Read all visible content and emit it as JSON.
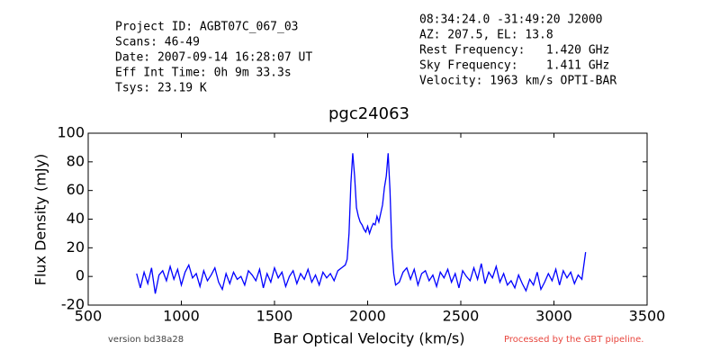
{
  "info_left": [
    "Project ID: AGBT07C_067_03",
    "Scans: 46-49",
    "Date: 2007-09-14 16:28:07 UT",
    "Eff Int Time: 0h 9m 33.3s",
    "Tsys: 23.19 K"
  ],
  "info_right": [
    "08:34:24.0 -31:49:20 J2000",
    "AZ: 207.5, EL: 13.8",
    "Rest Frequency:   1.420 GHz",
    "Sky Frequency:    1.411 GHz",
    "Velocity: 1963 km/s OPTI-BAR"
  ],
  "version": "version bd38a28",
  "pipeline_note": "Processed by the GBT pipeline.",
  "chart_data": {
    "type": "line",
    "title": "pgc24063",
    "x_label": "Bar Optical Velocity (km/s)",
    "y_label": "Flux Density (mJy)",
    "xlim": [
      500,
      3500
    ],
    "xticks": [
      500,
      1000,
      1500,
      2000,
      2500,
      3000,
      3500
    ],
    "ylim": [
      -20,
      100
    ],
    "yticks": [
      -20,
      0,
      20,
      40,
      60,
      80,
      100
    ],
    "x": [
      760,
      780,
      800,
      820,
      840,
      860,
      880,
      900,
      920,
      940,
      960,
      980,
      1000,
      1020,
      1040,
      1060,
      1080,
      1100,
      1120,
      1140,
      1160,
      1180,
      1200,
      1220,
      1240,
      1260,
      1280,
      1300,
      1320,
      1340,
      1360,
      1380,
      1400,
      1420,
      1440,
      1460,
      1480,
      1500,
      1520,
      1540,
      1560,
      1580,
      1600,
      1620,
      1640,
      1660,
      1680,
      1700,
      1720,
      1740,
      1760,
      1780,
      1800,
      1820,
      1840,
      1860,
      1880,
      1890,
      1900,
      1910,
      1920,
      1930,
      1940,
      1950,
      1960,
      1970,
      1980,
      1990,
      2000,
      2010,
      2020,
      2030,
      2040,
      2050,
      2060,
      2070,
      2080,
      2090,
      2100,
      2110,
      2120,
      2130,
      2140,
      2150,
      2170,
      2190,
      2210,
      2230,
      2250,
      2270,
      2290,
      2310,
      2330,
      2350,
      2370,
      2390,
      2410,
      2430,
      2450,
      2470,
      2490,
      2510,
      2530,
      2550,
      2570,
      2590,
      2610,
      2630,
      2650,
      2670,
      2690,
      2710,
      2730,
      2750,
      2770,
      2790,
      2810,
      2830,
      2850,
      2870,
      2890,
      2910,
      2930,
      2950,
      2970,
      2990,
      3010,
      3030,
      3050,
      3070,
      3090,
      3110,
      3130,
      3150,
      3170
    ],
    "series": [
      {
        "name": "flux",
        "color": "#0000ff",
        "values": [
          2,
          -8,
          3,
          -5,
          6,
          -12,
          1,
          4,
          -3,
          7,
          -2,
          5,
          -6,
          3,
          8,
          -1,
          2,
          -7,
          4,
          -3,
          1,
          6,
          -4,
          -9,
          2,
          -5,
          3,
          -2,
          0,
          -6,
          4,
          1,
          -3,
          5,
          -8,
          2,
          -4,
          6,
          -1,
          3,
          -7,
          0,
          4,
          -5,
          2,
          -2,
          5,
          -4,
          1,
          -6,
          3,
          -1,
          2,
          -3,
          4,
          6,
          8,
          12,
          30,
          65,
          86,
          70,
          48,
          42,
          38,
          36,
          33,
          31,
          35,
          30,
          34,
          37,
          36,
          42,
          38,
          44,
          50,
          62,
          70,
          86,
          60,
          20,
          2,
          -6,
          -4,
          3,
          6,
          -2,
          5,
          -6,
          2,
          4,
          -3,
          1,
          -7,
          3,
          -1,
          5,
          -4,
          2,
          -8,
          4,
          0,
          -3,
          6,
          -2,
          9,
          -5,
          3,
          -1,
          7,
          -4,
          2,
          -6,
          -3,
          -8,
          1,
          -5,
          -10,
          -2,
          -6,
          3,
          -9,
          -4,
          2,
          -3,
          5,
          -6,
          4,
          -1,
          3,
          -5,
          1,
          -2,
          17
        ]
      }
    ]
  }
}
